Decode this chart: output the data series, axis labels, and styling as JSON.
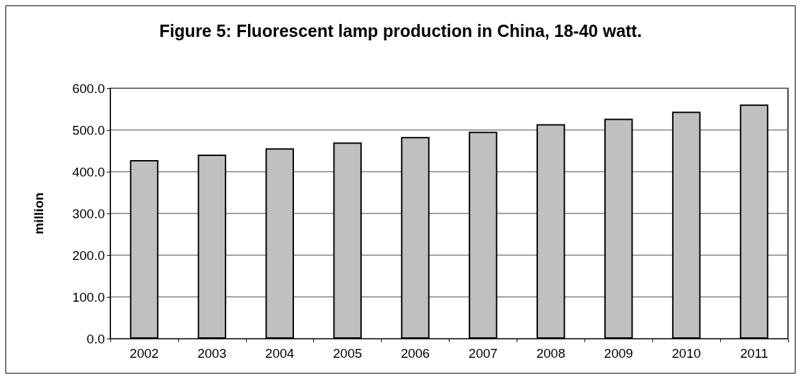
{
  "chart_data": {
    "type": "bar",
    "title": "Figure 5: Fluorescent lamp production in China, 18-40 watt.",
    "ylabel": "million",
    "categories": [
      "2002",
      "2003",
      "2004",
      "2005",
      "2006",
      "2007",
      "2008",
      "2009",
      "2010",
      "2011"
    ],
    "values": [
      428,
      441,
      456,
      470,
      483,
      496,
      514,
      527,
      544,
      561
    ],
    "color": "#c0c0c0",
    "ylim": [
      0,
      600
    ],
    "yticks": [
      {
        "value": 0,
        "label": "0.0"
      },
      {
        "value": 100,
        "label": "100.0"
      },
      {
        "value": 200,
        "label": "200.0"
      },
      {
        "value": 300,
        "label": "300.0"
      },
      {
        "value": 400,
        "label": "400.0"
      },
      {
        "value": 500,
        "label": "500.0"
      },
      {
        "value": 600,
        "label": "600.0"
      }
    ],
    "grid": "y"
  }
}
